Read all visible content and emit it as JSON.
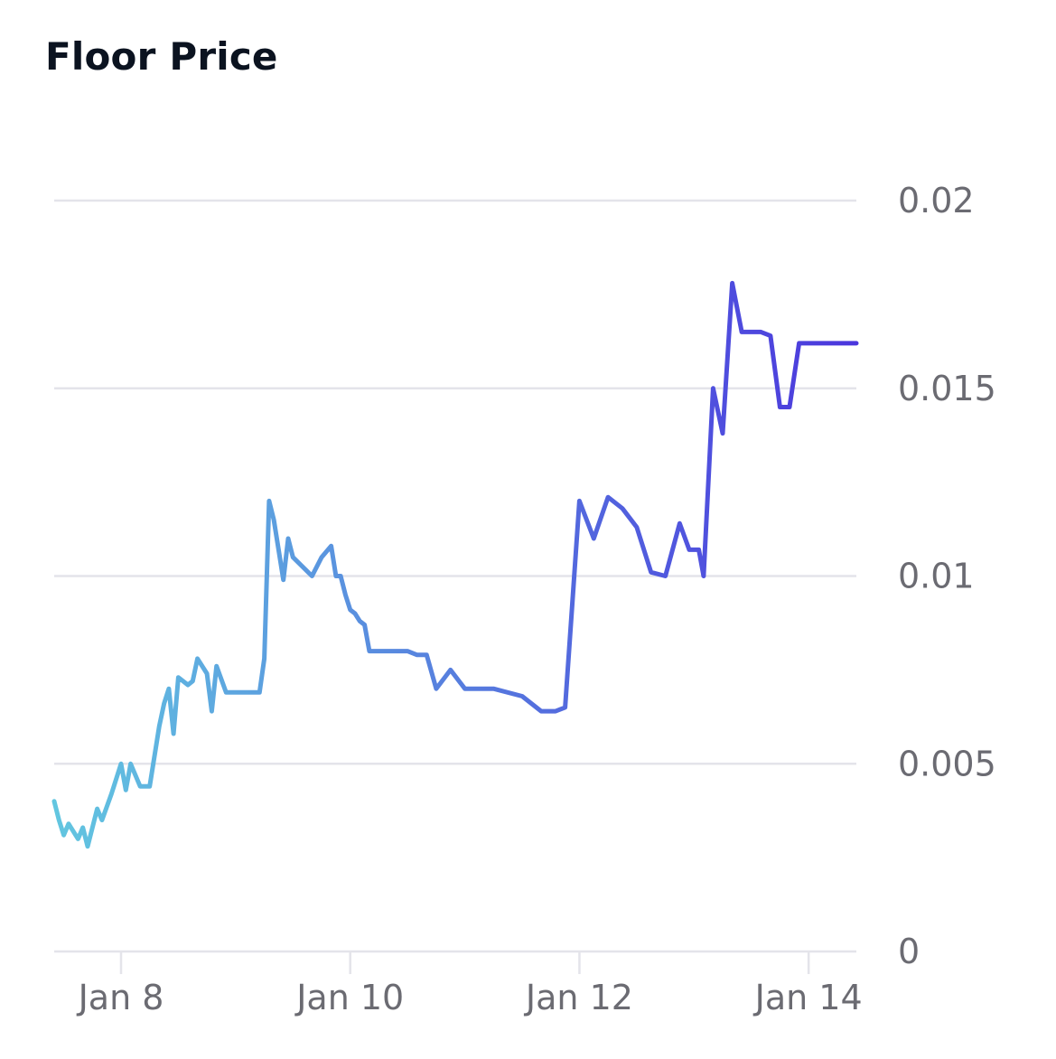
{
  "title": "Floor Price",
  "chart_data": {
    "type": "line",
    "title": "Floor Price",
    "xlabel": "",
    "ylabel": "",
    "x_ticks": [
      "Jan 8",
      "Jan 10",
      "Jan 12",
      "Jan 14"
    ],
    "y_ticks": [
      "0",
      "0.005",
      "0.01",
      "0.015",
      "0.02"
    ],
    "xlim": [
      "2023-01-07 10:00",
      "2023-01-14 10:00"
    ],
    "ylim": [
      0,
      0.02
    ],
    "grid": true,
    "legend": "none",
    "line_gradient": [
      "#62c6e0",
      "#4b36dd"
    ],
    "series": [
      {
        "x": [
          "2023-01-07 10:00",
          "2023-01-07 11:00",
          "2023-01-07 12:00",
          "2023-01-07 13:00",
          "2023-01-07 15:00",
          "2023-01-07 16:00",
          "2023-01-07 17:00",
          "2023-01-07 19:00",
          "2023-01-07 20:00",
          "2023-01-07 22:00",
          "2023-01-08 00:00",
          "2023-01-08 01:00",
          "2023-01-08 02:00",
          "2023-01-08 04:00",
          "2023-01-08 06:00",
          "2023-01-08 08:00",
          "2023-01-08 09:00",
          "2023-01-08 10:00",
          "2023-01-08 11:00",
          "2023-01-08 12:00",
          "2023-01-08 14:00",
          "2023-01-08 15:00",
          "2023-01-08 16:00",
          "2023-01-08 18:00",
          "2023-01-08 19:00",
          "2023-01-08 20:00",
          "2023-01-08 22:00",
          "2023-01-09 00:00",
          "2023-01-09 01:00",
          "2023-01-09 03:00",
          "2023-01-09 05:00",
          "2023-01-09 06:00",
          "2023-01-09 07:00",
          "2023-01-09 08:00",
          "2023-01-09 10:00",
          "2023-01-09 11:00",
          "2023-01-09 12:00",
          "2023-01-09 16:00",
          "2023-01-09 18:00",
          "2023-01-09 20:00",
          "2023-01-09 21:00",
          "2023-01-09 22:00",
          "2023-01-09 23:00",
          "2023-01-10 00:00",
          "2023-01-10 01:00",
          "2023-01-10 02:00",
          "2023-01-10 03:00",
          "2023-01-10 04:00",
          "2023-01-10 06:00",
          "2023-01-10 07:00",
          "2023-01-10 08:00",
          "2023-01-10 10:00",
          "2023-01-10 12:00",
          "2023-01-10 14:00",
          "2023-01-10 16:00",
          "2023-01-10 18:00",
          "2023-01-10 21:00",
          "2023-01-11 00:00",
          "2023-01-11 06:00",
          "2023-01-11 12:00",
          "2023-01-11 16:00",
          "2023-01-11 19:00",
          "2023-01-11 21:00",
          "2023-01-12 00:00",
          "2023-01-12 03:00",
          "2023-01-12 06:00",
          "2023-01-12 09:00",
          "2023-01-12 12:00",
          "2023-01-12 15:00",
          "2023-01-12 18:00",
          "2023-01-12 21:00",
          "2023-01-12 23:00",
          "2023-01-13 00:00",
          "2023-01-13 01:00",
          "2023-01-13 02:00",
          "2023-01-13 04:00",
          "2023-01-13 06:00",
          "2023-01-13 08:00",
          "2023-01-13 10:00",
          "2023-01-13 12:00",
          "2023-01-13 14:00",
          "2023-01-13 16:00",
          "2023-01-13 18:00",
          "2023-01-13 20:00",
          "2023-01-13 22:00",
          "2023-01-13 23:00",
          "2023-01-14 00:00",
          "2023-01-14 01:00",
          "2023-01-14 02:00",
          "2023-01-14 04:00",
          "2023-01-14 06:00",
          "2023-01-14 08:00",
          "2023-01-14 09:00",
          "2023-01-14 10:00"
        ],
        "y": [
          0.004,
          0.0035,
          0.0031,
          0.0034,
          0.003,
          0.0033,
          0.0028,
          0.0038,
          0.0035,
          0.0042,
          0.005,
          0.0043,
          0.005,
          0.0044,
          0.0044,
          0.006,
          0.0066,
          0.007,
          0.0058,
          0.0073,
          0.0071,
          0.0072,
          0.0078,
          0.0074,
          0.0064,
          0.0076,
          0.0069,
          0.0069,
          0.0069,
          0.0069,
          0.0069,
          0.0078,
          0.012,
          0.0115,
          0.0099,
          0.011,
          0.0105,
          0.01,
          0.0105,
          0.0108,
          0.01,
          0.01,
          0.0095,
          0.0091,
          0.009,
          0.0088,
          0.0087,
          0.008,
          0.008,
          0.008,
          0.008,
          0.008,
          0.008,
          0.0079,
          0.0079,
          0.007,
          0.0075,
          0.007,
          0.007,
          0.0068,
          0.0064,
          0.0064,
          0.0065,
          0.012,
          0.011,
          0.0121,
          0.0118,
          0.0113,
          0.0101,
          0.01,
          0.0114,
          0.0107,
          0.0107,
          0.0107,
          0.01,
          0.015,
          0.0138,
          0.0178,
          0.0165,
          0.0165,
          0.0165,
          0.0164,
          0.0145,
          0.0145,
          0.0162,
          0.0162,
          0.0162,
          0.0162,
          0.0162,
          0.0162,
          0.0162,
          0.0162,
          0.0162,
          0.0162
        ]
      }
    ]
  }
}
